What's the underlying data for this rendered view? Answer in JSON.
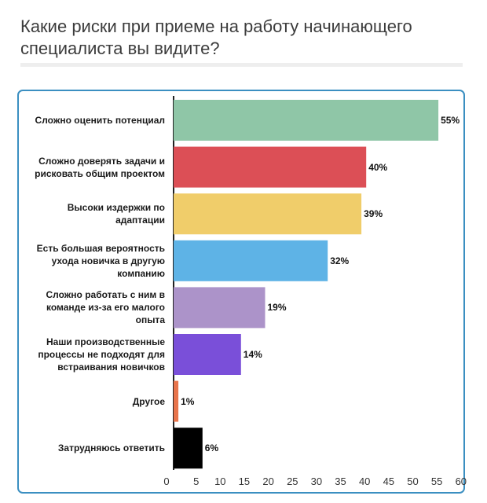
{
  "title": "Какие риски при приеме на работу начинающего специалиста вы видите?",
  "chart_data": {
    "type": "bar",
    "orientation": "horizontal",
    "title": "Какие риски при приеме на работу начинающего специалиста вы видите?",
    "categories": [
      "Сложно оценить потенциал",
      "Сложно доверять задачи и рисковать общим проектом",
      "Высоки издержки по адаптации",
      "Есть большая вероятность ухода новичка в другую компанию",
      "Сложно работать с ним в команде из-за его малого опыта",
      "Наши производственные процессы не подходят для встраивания новичков",
      "Другое",
      "Затрудняюсь ответить"
    ],
    "category_lines": [
      [
        "Сложно оценить потенциал"
      ],
      [
        "Сложно доверять задачи и",
        "рисковать общим проектом"
      ],
      [
        "Высоки издержки по",
        "адаптации"
      ],
      [
        "Есть большая вероятность",
        "ухода новичка в другую",
        "компанию"
      ],
      [
        "Сложно работать с ним в",
        "команде из-за его малого",
        "опыта"
      ],
      [
        "Наши производственные",
        "процессы не подходят для",
        "встраивания новичков"
      ],
      [
        "Другое"
      ],
      [
        "Затрудняюсь ответить"
      ]
    ],
    "values": [
      55,
      40,
      39,
      32,
      19,
      14,
      1,
      6
    ],
    "value_labels": [
      "55%",
      "40%",
      "39%",
      "32%",
      "19%",
      "14%",
      "1%",
      "6%"
    ],
    "colors": [
      "#8fc6a7",
      "#dc4f56",
      "#f0cd6a",
      "#5eb3e6",
      "#ac93c9",
      "#7a4fd9",
      "#e8744b",
      "#000000"
    ],
    "xlim": [
      0,
      60
    ],
    "xticks": [
      0,
      5,
      10,
      15,
      20,
      25,
      30,
      35,
      40,
      45,
      50,
      55,
      60
    ],
    "xlabel": "",
    "ylabel": "",
    "grid": false,
    "legend": "none"
  }
}
